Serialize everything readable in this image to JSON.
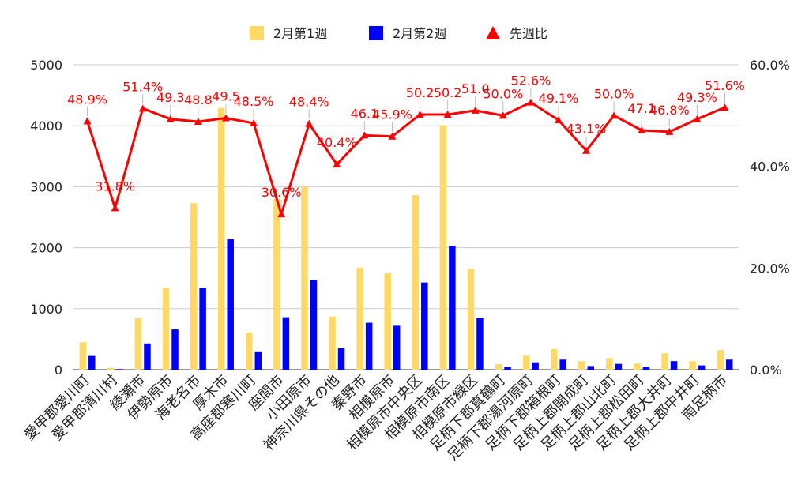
{
  "chart_data": {
    "type": "bar",
    "combo": "bar+line",
    "categories": [
      "愛甲郡愛川町",
      "愛甲郡清川村",
      "綾瀬市",
      "伊勢原市",
      "海老名市",
      "厚木市",
      "高座郡寒川町",
      "座間市",
      "小田原市",
      "神奈川県その他",
      "秦野市",
      "相模原市",
      "相模原市中央区",
      "相模原市南区",
      "相模原市緑区",
      "足柄下郡真鶴町",
      "足柄下郡湯河原町",
      "足柄下郡箱根町",
      "足柄上郡開成町",
      "足柄上郡山北町",
      "足柄上郡松田町",
      "足柄上郡大井町",
      "足柄上郡中井町",
      "南足柄市"
    ],
    "series": [
      {
        "name": "2月第1週",
        "type": "bar",
        "axis": "left",
        "color": "#FFD966",
        "values": [
          450,
          30,
          850,
          1340,
          2730,
          4290,
          610,
          2800,
          3000,
          870,
          1670,
          1580,
          2860,
          4010,
          1650,
          90,
          230,
          340,
          140,
          190,
          100,
          270,
          140,
          320
        ]
      },
      {
        "name": "2月第2週",
        "type": "bar",
        "axis": "left",
        "color": "#0000FF",
        "values": [
          225,
          10,
          430,
          660,
          1340,
          2140,
          300,
          860,
          1470,
          350,
          770,
          720,
          1430,
          2030,
          850,
          45,
          120,
          165,
          60,
          95,
          50,
          140,
          70,
          165
        ]
      },
      {
        "name": "先週比",
        "type": "line",
        "axis": "right",
        "color": "#FF0000",
        "values": [
          48.9,
          31.8,
          51.4,
          49.3,
          48.8,
          49.5,
          48.5,
          30.6,
          48.4,
          40.4,
          46.1,
          45.9,
          50.2,
          50.2,
          51.0,
          50.0,
          52.6,
          49.1,
          43.1,
          50.0,
          47.1,
          46.8,
          49.3,
          51.6
        ],
        "labels": [
          "48.9%",
          "31.8%",
          "51.4%",
          "49.3",
          "48.8",
          "49.5",
          "48.5%",
          "30.6%",
          "48.4%",
          "40.4%",
          "46.1",
          "45.9%",
          "50.2",
          "50.2",
          "51.0",
          "50.0%",
          "52.6%",
          "49.1%",
          "43.1%",
          "50.0%",
          "47.1",
          "46.8%",
          "49.3%",
          "51.6%"
        ]
      }
    ],
    "y_left": {
      "min": 0,
      "max": 5000,
      "ticks": [
        "0",
        "1000",
        "2000",
        "3000",
        "4000",
        "5000"
      ]
    },
    "y_right": {
      "min": 0,
      "max": 60,
      "ticks": [
        "0.0%",
        "20.0%",
        "40.0%",
        "60.0%"
      ]
    },
    "legend_position": "top-center",
    "grid": true
  }
}
